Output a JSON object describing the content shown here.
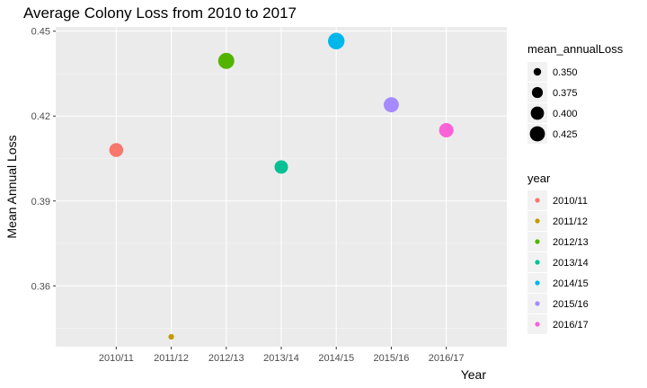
{
  "chart_data": {
    "type": "scatter",
    "title": "Average Colony Loss from 2010 to 2017",
    "xlabel": "Year",
    "ylabel": "Mean Annual Loss",
    "categories": [
      "2010/11",
      "2011/12",
      "2012/13",
      "2013/14",
      "2014/15",
      "2015/16",
      "2016/17"
    ],
    "values": [
      0.408,
      0.342,
      0.4395,
      0.402,
      0.4465,
      0.424,
      0.415
    ],
    "colors": [
      "#F8766D",
      "#C49A00",
      "#53B400",
      "#00C094",
      "#00B6EB",
      "#A58AFF",
      "#FB61D7"
    ],
    "y_ticks": [
      0.36,
      0.39,
      0.42,
      0.45
    ],
    "y_tick_labels": [
      "0.36",
      "0.39",
      "0.42",
      "0.45"
    ],
    "ylim": [
      0.3385,
      0.4515
    ],
    "grid": true,
    "size_legend": {
      "title": "mean_annualLoss",
      "values": [
        0.35,
        0.375,
        0.4,
        0.425
      ],
      "labels": [
        "0.350",
        "0.375",
        "0.400",
        "0.425"
      ]
    },
    "color_legend": {
      "title": "year",
      "labels": [
        "2010/11",
        "2011/12",
        "2012/13",
        "2013/14",
        "2014/15",
        "2015/16",
        "2016/17"
      ]
    },
    "legend_position": "right"
  }
}
